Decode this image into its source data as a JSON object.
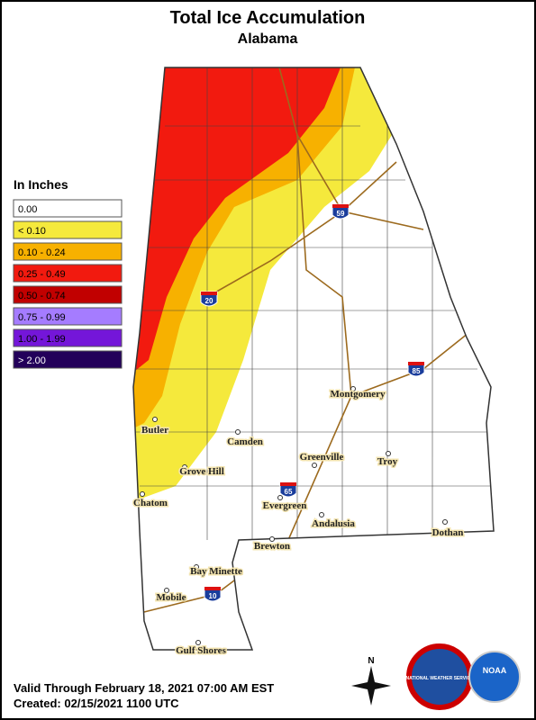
{
  "header": {
    "title": "Total Ice Accumulation",
    "subtitle": "Alabama"
  },
  "legend": {
    "title": "In Inches",
    "items": [
      {
        "label": "0.00",
        "color": "#ffffff"
      },
      {
        "label": "< 0.10",
        "color": "#f5e93c"
      },
      {
        "label": "0.10 - 0.24",
        "color": "#f7b100"
      },
      {
        "label": "0.25 - 0.49",
        "color": "#f21a0f"
      },
      {
        "label": "0.50 - 0.74",
        "color": "#c10000"
      },
      {
        "label": "0.75 - 0.99",
        "color": "#a57cff"
      },
      {
        "label": "1.00 - 1.99",
        "color": "#7416d9"
      },
      {
        "label": "> 2.00",
        "color": "#23005a"
      }
    ]
  },
  "cities": [
    "Montgomery",
    "Butler",
    "Camden",
    "Grove Hill",
    "Greenville",
    "Troy",
    "Chatom",
    "Evergreen",
    "Andalusia",
    "Dothan",
    "Brewton",
    "Bay Minette",
    "Mobile",
    "Gulf Shores"
  ],
  "interstates": [
    "59",
    "20",
    "85",
    "65",
    "10"
  ],
  "footer": {
    "valid": "Valid Through February 18, 2021 07:00 AM EST",
    "created": "Created: 02/15/2021 1100 UTC"
  },
  "logos": {
    "compass": "N",
    "nws": "NATIONAL WEATHER SERVICE",
    "noaa": "NOAA"
  }
}
